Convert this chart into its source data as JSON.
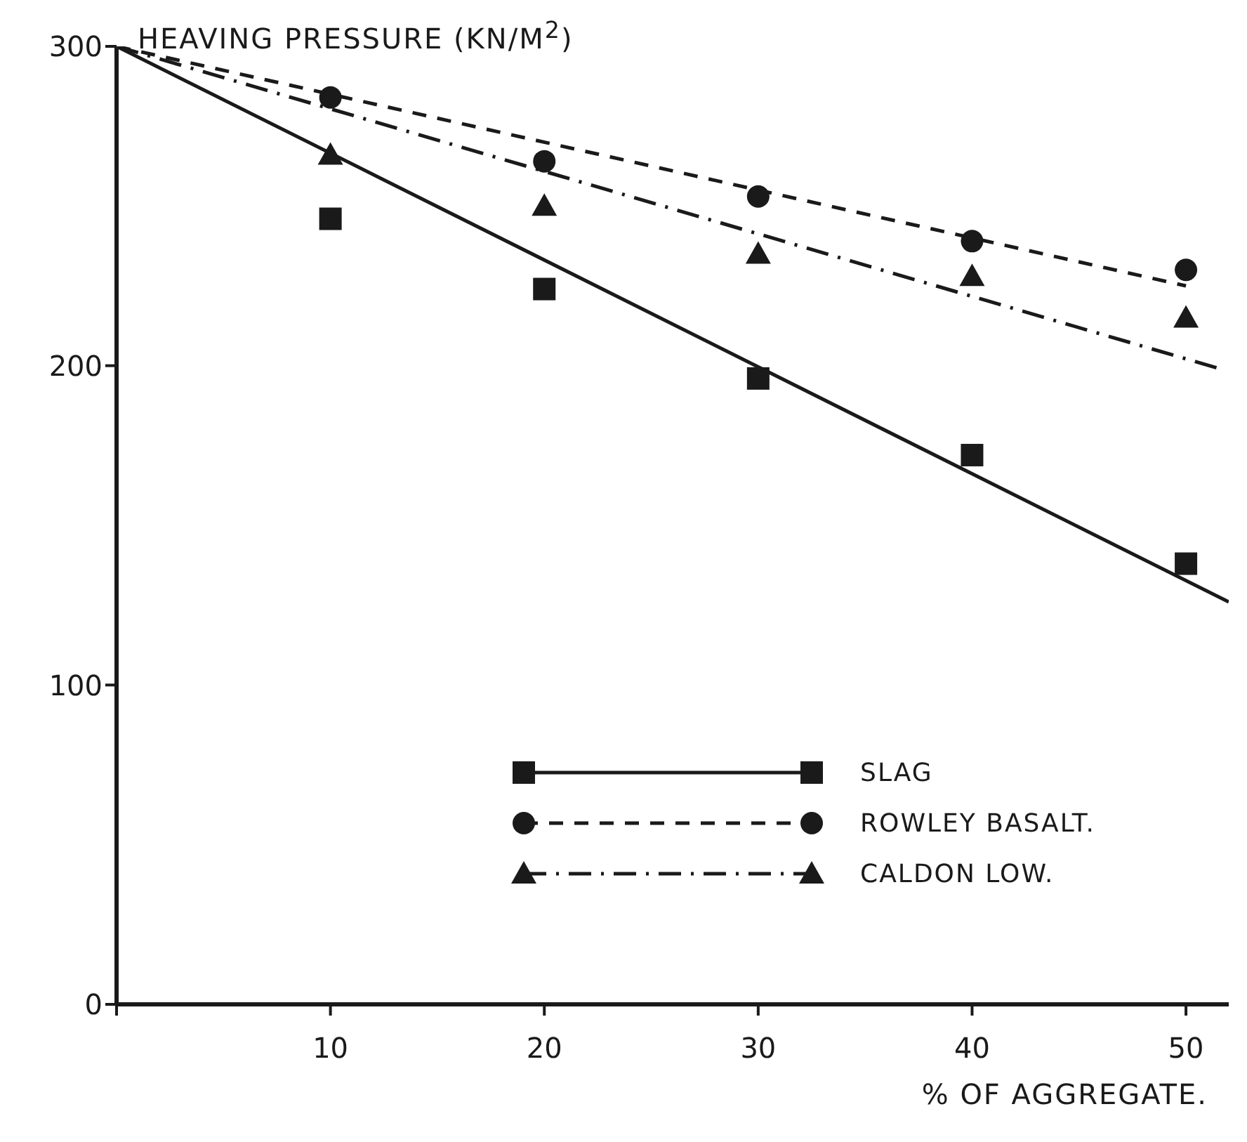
{
  "chart_data": {
    "type": "scatter",
    "ylabel": "HEAVING PRESSURE (KN/M$^{2}$)",
    "xlabel": "% OF AGGREGATE.",
    "xlim": [
      0,
      52
    ],
    "xticks": [
      {
        "value": 0,
        "label": null
      },
      10,
      20,
      30,
      40,
      50
    ],
    "ylim": [
      0,
      300
    ],
    "yticks": [
      0,
      100,
      200,
      300
    ],
    "grid": false,
    "legend": "bottom right",
    "series": [
      {
        "name": "SLAG",
        "marker": "square",
        "color": "#1a1a1a",
        "x": [
          10,
          20,
          30,
          40,
          50
        ],
        "values": [
          246,
          224,
          196,
          172,
          138
        ]
      },
      {
        "type": "line",
        "marker": "none",
        "line_style": "solid",
        "color": "#1a1a1a",
        "x": [
          0,
          52
        ],
        "values": [
          300,
          126
        ]
      },
      {
        "name": "ROWLEY BASALT.",
        "marker": "circle",
        "color": "#1a1a1a",
        "x": [
          10,
          20,
          30,
          40,
          50
        ],
        "values": [
          284,
          264,
          253,
          239,
          230
        ]
      },
      {
        "type": "line",
        "marker": "none",
        "line_style": "dashed",
        "color": "#1a1a1a",
        "x": [
          0,
          50
        ],
        "values": [
          300,
          225
        ]
      },
      {
        "name": "CALDON LOW.",
        "marker": "triangle",
        "color": "#1a1a1a",
        "x": [
          10,
          20,
          30,
          40,
          50
        ],
        "values": [
          266,
          250,
          235,
          228,
          215
        ]
      },
      {
        "type": "line",
        "marker": "none",
        "line_style": "dashdot",
        "color": "#1a1a1a",
        "x": [
          0,
          51.6
        ],
        "values": [
          300,
          199
        ]
      }
    ]
  }
}
